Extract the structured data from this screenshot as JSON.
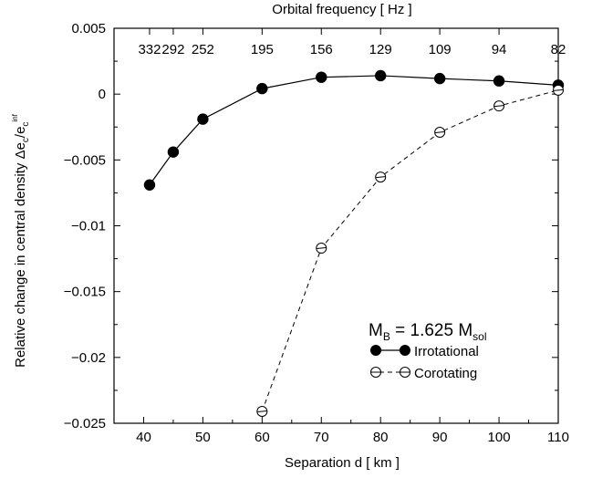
{
  "chart_data": {
    "type": "line",
    "xlabel": "Separation  d [ km ]",
    "x2label": "Orbital frequency  [ Hz ]",
    "ylabel_main": "Relative change in central density  Δe",
    "ylabel_sub1": "c",
    "ylabel_mid": "/e",
    "ylabel_sub2": "c",
    "ylabel_sup": "inf",
    "xlim": [
      35,
      110
    ],
    "ylim": [
      -0.025,
      0.005
    ],
    "x_ticks": [
      40,
      50,
      60,
      70,
      80,
      90,
      100,
      110
    ],
    "x_tick_labels": [
      "40",
      "50",
      "60",
      "70",
      "80",
      "90",
      "100",
      "110"
    ],
    "y_ticks": [
      0.005,
      0,
      -0.005,
      -0.01,
      -0.015,
      -0.02,
      -0.025
    ],
    "y_tick_labels": [
      "0.005",
      "0",
      "−0.005",
      "−0.01",
      "−0.015",
      "−0.02",
      "−0.025"
    ],
    "top_ticks": [
      {
        "x": 41,
        "label": "332"
      },
      {
        "x": 45,
        "label": "292"
      },
      {
        "x": 50,
        "label": "252"
      },
      {
        "x": 60,
        "label": "195"
      },
      {
        "x": 70,
        "label": "156"
      },
      {
        "x": 80,
        "label": "129"
      },
      {
        "x": 90,
        "label": "109"
      },
      {
        "x": 100,
        "label": "94"
      },
      {
        "x": 110,
        "label": "82"
      }
    ],
    "series": [
      {
        "name": "Irrotational",
        "marker": "filled-circle",
        "line": "solid",
        "x": [
          41,
          45,
          50,
          60,
          70,
          80,
          90,
          100,
          110
        ],
        "y": [
          -0.0069,
          -0.0044,
          -0.0019,
          0.00042,
          0.00128,
          0.0014,
          0.00118,
          0.001,
          0.00068
        ]
      },
      {
        "name": "Corotating",
        "marker": "open-circle",
        "line": "dashed",
        "x": [
          60,
          70,
          80,
          90,
          100,
          110
        ],
        "y": [
          -0.0241,
          -0.0117,
          -0.0063,
          -0.0029,
          -0.0009,
          0.0003
        ]
      }
    ],
    "annotation": {
      "prefix": "M",
      "prefix_sub": "B",
      "mid": " = 1.625 M",
      "suffix_sub": "sol"
    },
    "legend_position": "bottom-right"
  }
}
